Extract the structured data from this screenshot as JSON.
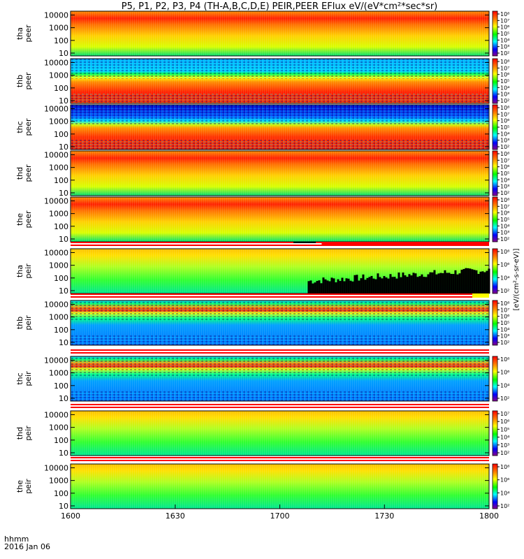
{
  "title": "P5, P1, P2, P3, P4 (TH-A,B,C,D,E) PEIR,PEER EFlux eV/(eV*cm²*sec*sr)",
  "footer": {
    "time_label": "hhmm",
    "date_label": "2016 Jan 06"
  },
  "colorbar_unit": "[eV/(cm²-s-sr-eV)]",
  "colors": {
    "bar_red": "#ff0000",
    "bar_yellow": "#ffff00",
    "bar_black": "#000000"
  },
  "chart_data": {
    "type": "heatmap",
    "title": "P5, P1, P2, P3, P4 (TH-A,B,C,D,E) PEIR,PEER EFlux eV/(eV*cm²*sec*sr)",
    "x_axis": {
      "label": "hhmm",
      "range": [
        "16:00",
        "18:00"
      ],
      "ticks": [
        "1600",
        "1630",
        "1700",
        "1730",
        "1800"
      ],
      "date": "2016 Jan 06"
    },
    "y_scale": "log",
    "y_range_eV": [
      6,
      20000
    ],
    "y_ticks": [
      "10",
      "100",
      "1000",
      "10000"
    ],
    "panels": [
      {
        "ylabel": [
          "tha",
          "peer"
        ],
        "cbar_ticks": [
          "10⁸",
          "10⁷",
          "10⁶",
          "10⁵",
          "10⁴",
          "10³",
          "10²"
        ],
        "pattern": "peer"
      },
      {
        "ylabel": [
          "thb",
          "peer"
        ],
        "cbar_ticks": [
          "10⁸",
          "10⁷",
          "10⁶",
          "10⁵",
          "10⁴",
          "10³",
          "10²"
        ],
        "pattern": "noisy_peer"
      },
      {
        "ylabel": [
          "thc",
          "peer"
        ],
        "cbar_ticks": [
          "10⁸",
          "10⁷",
          "10⁶",
          "10⁵",
          "10⁴",
          "10³",
          "10²"
        ],
        "pattern": "noisy_peer_dark"
      },
      {
        "ylabel": [
          "thd",
          "peer"
        ],
        "cbar_ticks": [
          "10⁸",
          "10⁷",
          "10⁶",
          "10⁵",
          "10⁴",
          "10³",
          "10²"
        ],
        "pattern": "peer"
      },
      {
        "ylabel": [
          "the",
          "peer"
        ],
        "cbar_ticks": [
          "10⁸",
          "10⁷",
          "10⁶",
          "10⁵",
          "10⁴",
          "10³",
          "10²"
        ],
        "pattern": "peer"
      },
      {
        "ylabel": [
          "tha",
          "peir"
        ],
        "cbar_ticks": [
          "10⁸",
          "10⁶",
          "10⁴",
          "10²"
        ],
        "pattern": "peir_black"
      },
      {
        "ylabel": [
          "thb",
          "peir"
        ],
        "cbar_ticks": [
          "10⁸",
          "10⁷",
          "10⁶",
          "10⁵",
          "10⁴",
          "10³",
          "10²"
        ],
        "pattern": "peir_noisy"
      },
      {
        "ylabel": [
          "thc",
          "peir"
        ],
        "cbar_ticks": [
          "10⁸",
          "10⁶",
          "10⁴",
          "10²"
        ],
        "pattern": "peir_noisy"
      },
      {
        "ylabel": [
          "thd",
          "peir"
        ],
        "cbar_ticks": [
          "10⁷",
          "10⁶",
          "10⁵",
          "10⁴",
          "10³",
          "10²"
        ],
        "pattern": "peir"
      },
      {
        "ylabel": [
          "the",
          "peir"
        ],
        "cbar_ticks": [
          "10⁸",
          "10⁶",
          "10⁴",
          "10²"
        ],
        "pattern": "peir"
      }
    ]
  }
}
